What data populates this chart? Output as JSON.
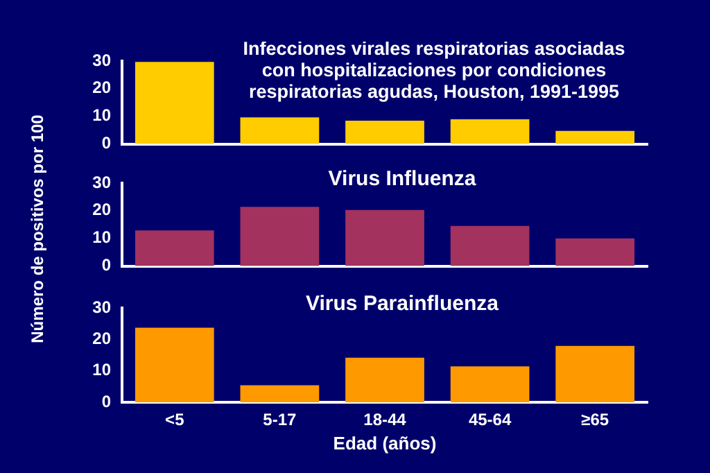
{
  "chart_data": [
    {
      "type": "bar",
      "title": "Infecciones virales respiratorias asociadas con hospitalizaciones por condiciones respiratorias agudas, Houston, 1991-1995",
      "categories": [
        null,
        null,
        null,
        null,
        null
      ],
      "values": [
        29.7,
        9.6,
        8.4,
        8.9,
        4.7
      ],
      "color": "#ffcc00",
      "ylim": [
        0,
        30
      ],
      "yticks": [
        0,
        10,
        20,
        30
      ],
      "grid": false,
      "tick_labels": "y"
    },
    {
      "type": "bar",
      "title": "Virus Influenza",
      "ylabel": "Número de positivos por 100",
      "categories": [
        null,
        null,
        null,
        null,
        null
      ],
      "values": [
        12.9,
        21.4,
        20.3,
        14.5,
        10.0
      ],
      "color": "#a3325e",
      "ylim": [
        0,
        30
      ],
      "yticks": [
        0,
        10,
        20,
        30
      ],
      "grid": false,
      "tick_labels": "y"
    },
    {
      "type": "bar",
      "title": "Virus Parainfluenza",
      "xlabel": "Edad (años)",
      "categories": [
        "<5",
        "5-17",
        "18-44",
        "45-64",
        "≥65"
      ],
      "values": [
        23.7,
        5.4,
        14.2,
        11.4,
        17.9
      ],
      "color": "#ff9900",
      "ylim": [
        0,
        30
      ],
      "yticks": [
        0,
        10,
        20,
        30
      ],
      "grid": false
    }
  ]
}
